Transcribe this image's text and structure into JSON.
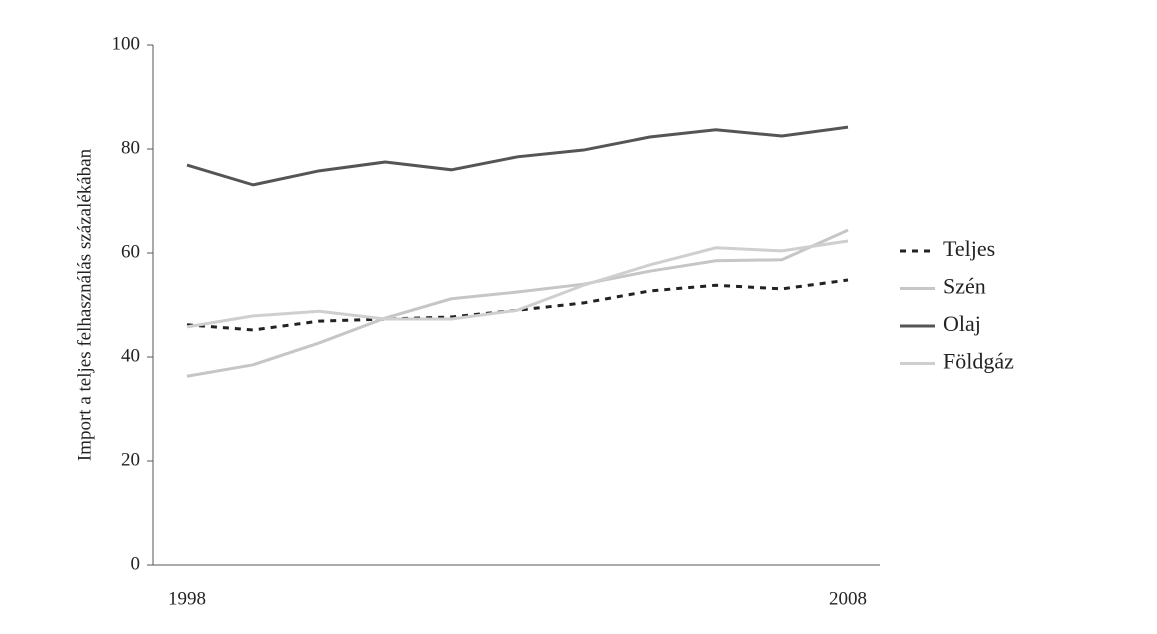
{
  "chart_data": {
    "type": "line",
    "y_label": "Import a teljes felhasználás százalékában",
    "x": [
      1998,
      1999,
      2000,
      2001,
      2002,
      2003,
      2004,
      2005,
      2006,
      2007,
      2008
    ],
    "xlim": [
      1998,
      2008
    ],
    "xticks": [
      1998,
      2008
    ],
    "ylim": [
      0,
      100
    ],
    "yticks": [
      0,
      20,
      40,
      60,
      80,
      100
    ],
    "grid": false,
    "legend": "right",
    "series": [
      {
        "name": "Teljes",
        "color": "#222222",
        "style": "dotted",
        "values": [
          46.2,
          45.2,
          46.9,
          47.3,
          47.7,
          49.0,
          50.4,
          52.7,
          53.8,
          53.1,
          54.8
        ]
      },
      {
        "name": "Szén",
        "color": "#c6c6c6",
        "style": "solid",
        "values": [
          36.3,
          38.5,
          42.7,
          47.5,
          51.2,
          52.5,
          54.0,
          56.5,
          58.5,
          58.7,
          64.4
        ]
      },
      {
        "name": "Olaj",
        "color": "#555555",
        "style": "solid",
        "values": [
          76.9,
          73.1,
          75.8,
          77.5,
          76.0,
          78.5,
          79.8,
          82.3,
          83.7,
          82.5,
          84.2
        ]
      },
      {
        "name": "Földgáz",
        "color": "#cfcfcf",
        "style": "solid",
        "values": [
          45.8,
          47.9,
          48.8,
          47.3,
          47.3,
          49.0,
          53.8,
          57.7,
          61.0,
          60.4,
          62.3
        ]
      }
    ]
  }
}
